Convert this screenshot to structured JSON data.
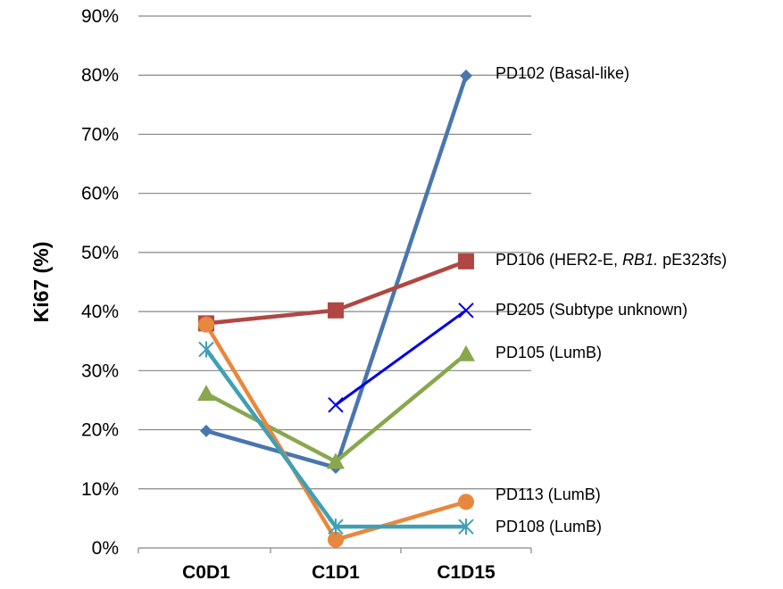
{
  "chart_data": {
    "type": "line",
    "title": "",
    "xlabel": "",
    "ylabel": "Ki67 (%)",
    "categories": [
      "C0D1",
      "C1D1",
      "C1D15"
    ],
    "ylim": [
      0,
      90
    ],
    "yticks": [
      "0%",
      "10%",
      "20%",
      "30%",
      "40%",
      "50%",
      "60%",
      "70%",
      "80%",
      "90%"
    ],
    "grid": "horizontal",
    "legend": "none (series labelled at right end of lines)",
    "series": [
      {
        "name": "PD102 (Basal-like)",
        "label_parts": [
          {
            "text": "PD102 (Basal-like)",
            "italic": false
          }
        ],
        "values": [
          19.8,
          13.6,
          79.9
        ],
        "color": "#4A76AE",
        "marker": "diamond"
      },
      {
        "name": "PD106 (HER2-E, RB1. pE323fs)",
        "label_parts": [
          {
            "text": "PD106 (HER2-E, ",
            "italic": false
          },
          {
            "text": "RB1.",
            "italic": true
          },
          {
            "text": " pE323fs)",
            "italic": false
          }
        ],
        "values": [
          38.0,
          40.2,
          48.5
        ],
        "color": "#B04743",
        "marker": "square"
      },
      {
        "name": "PD205 (Subtype unknown)",
        "label_parts": [
          {
            "text": "PD205 (Subtype unknown)",
            "italic": false
          }
        ],
        "values": [
          null,
          24.2,
          40.2
        ],
        "color": "#0000E6",
        "marker": "x"
      },
      {
        "name": "PD105 (LumB)",
        "label_parts": [
          {
            "text": "PD105 (LumB)",
            "italic": false
          }
        ],
        "values": [
          26.1,
          14.6,
          32.8
        ],
        "color": "#89A74D",
        "marker": "triangle"
      },
      {
        "name": "PD113 (LumB)",
        "label_parts": [
          {
            "text": "PD113 (LumB)",
            "italic": false
          }
        ],
        "values": [
          37.8,
          1.4,
          7.8
        ],
        "color": "#E8883E",
        "marker": "circle"
      },
      {
        "name": "PD108 (LumB)",
        "label_parts": [
          {
            "text": "PD108 (LumB)",
            "italic": false
          }
        ],
        "values": [
          33.6,
          3.6,
          3.6
        ],
        "color": "#3FA0B5",
        "marker": "asterisk"
      }
    ]
  }
}
